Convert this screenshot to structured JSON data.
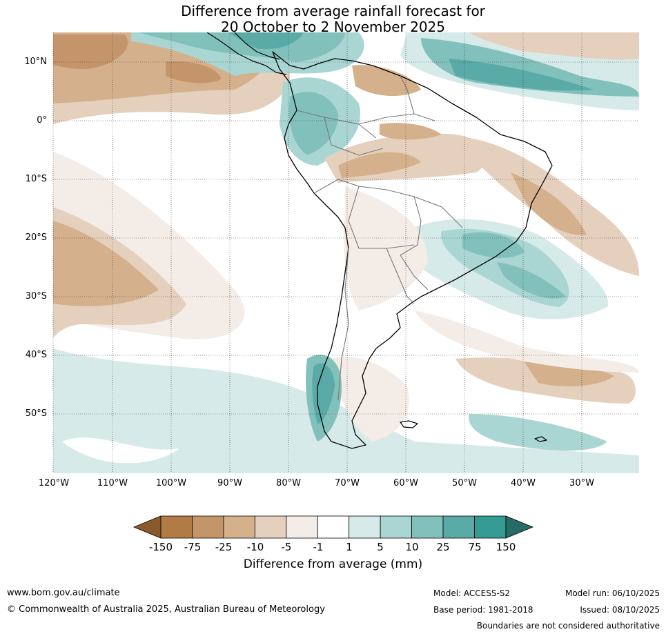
{
  "title": {
    "line1": "Difference from average rainfall forecast for",
    "line2": "20 October to 2 November 2025"
  },
  "map": {
    "lat_labels": [
      "10°N",
      "0°",
      "10°S",
      "20°S",
      "30°S",
      "40°S",
      "50°S"
    ],
    "lon_labels": [
      "120°W",
      "110°W",
      "100°W",
      "90°W",
      "80°W",
      "70°W",
      "60°W",
      "50°W",
      "40°W",
      "30°W"
    ]
  },
  "colorbar": {
    "title": "Difference from average (mm)",
    "ticks": [
      "-150",
      "-75",
      "-25",
      "-10",
      "-5",
      "-1",
      "1",
      "5",
      "10",
      "25",
      "75",
      "150"
    ],
    "colors": [
      "#8a5a2c",
      "#b07b45",
      "#c4956a",
      "#d4b08c",
      "#e5d0bd",
      "#f4ece6",
      "#ffffff",
      "#d6ebe9",
      "#a9d5d2",
      "#82c0bc",
      "#5aaba7",
      "#349a94",
      "#276b68"
    ]
  },
  "footer": {
    "website": "www.bom.gov.au/climate",
    "copyright": "© Commonwealth of Australia 2025, Australian Bureau of Meteorology",
    "model": "Model: ACCESS-S2",
    "base_period": "Base period: 1981-2018",
    "model_run": "Model run: 06/10/2025",
    "issued": "Issued: 08/10/2025",
    "disclaimer": "Boundaries are not considered authoritative"
  }
}
